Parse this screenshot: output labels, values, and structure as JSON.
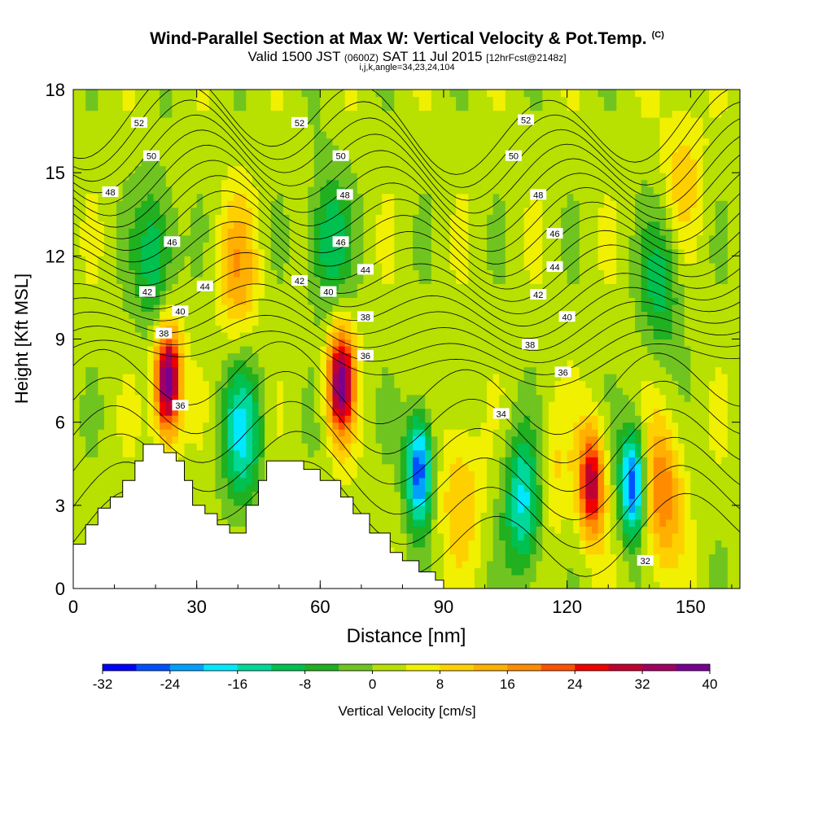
{
  "header": {
    "title": "Wind-Parallel Section at Max W: Vertical Velocity & Pot.Temp.",
    "copyright": "(C)",
    "subtitle_main": "Valid 1500 JST",
    "subtitle_utc": "(0600Z)",
    "subtitle_date": "SAT 11 Jul 2015",
    "subtitle_fcst": "[12hrFcst@2148z]",
    "subtitle2": "i,j,k,angle=34,23,24,104"
  },
  "colors": {
    "terrain": "#ffffff",
    "contour_line": "#000000",
    "background": "#ffffff"
  },
  "chart_data": {
    "type": "heatmap",
    "xlabel": "Distance [nm]",
    "ylabel": "Height [Kft MSL]",
    "xlim": [
      0,
      162
    ],
    "ylim": [
      0,
      18
    ],
    "xticks": [
      0,
      30,
      60,
      90,
      120,
      150
    ],
    "yticks": [
      0,
      3,
      6,
      9,
      12,
      15,
      18
    ],
    "grid": false,
    "colorbar": {
      "label": "Vertical Velocity [cm/s]",
      "placement": "bottom",
      "ticks": [
        "-32",
        "-24",
        "-16",
        "-8",
        "0",
        "8",
        "16",
        "24",
        "32",
        "40"
      ],
      "levels": [
        -32,
        -28,
        -24,
        -20,
        -16,
        -12,
        -8,
        -4,
        0,
        4,
        8,
        12,
        16,
        20,
        24,
        28,
        32,
        36,
        40
      ],
      "colors": [
        "#0000ff",
        "#0050ff",
        "#00a0ff",
        "#00e8ff",
        "#00d89a",
        "#00c050",
        "#20b020",
        "#70c420",
        "#b8e000",
        "#f0f000",
        "#ffd000",
        "#ffb000",
        "#ff8c00",
        "#ff5000",
        "#f00000",
        "#c00030",
        "#a00060",
        "#780090"
      ]
    },
    "contour_labels": [
      {
        "text": "52",
        "x": 16,
        "y": 16.8
      },
      {
        "text": "52",
        "x": 55,
        "y": 16.8
      },
      {
        "text": "52",
        "x": 110,
        "y": 16.9
      },
      {
        "text": "50",
        "x": 19,
        "y": 15.6
      },
      {
        "text": "50",
        "x": 65,
        "y": 15.6
      },
      {
        "text": "50",
        "x": 107,
        "y": 15.6
      },
      {
        "text": "48",
        "x": 9,
        "y": 14.3
      },
      {
        "text": "48",
        "x": 66,
        "y": 14.2
      },
      {
        "text": "48",
        "x": 113,
        "y": 14.2
      },
      {
        "text": "46",
        "x": 24,
        "y": 12.5
      },
      {
        "text": "46",
        "x": 65,
        "y": 12.5
      },
      {
        "text": "46",
        "x": 117,
        "y": 12.8
      },
      {
        "text": "44",
        "x": 32,
        "y": 10.9
      },
      {
        "text": "44",
        "x": 71,
        "y": 11.5
      },
      {
        "text": "44",
        "x": 117,
        "y": 11.6
      },
      {
        "text": "42",
        "x": 18,
        "y": 10.7
      },
      {
        "text": "42",
        "x": 55,
        "y": 11.1
      },
      {
        "text": "42",
        "x": 113,
        "y": 10.6
      },
      {
        "text": "40",
        "x": 26,
        "y": 10.0
      },
      {
        "text": "40",
        "x": 62,
        "y": 10.7
      },
      {
        "text": "40",
        "x": 120,
        "y": 9.8
      },
      {
        "text": "38",
        "x": 22,
        "y": 9.2
      },
      {
        "text": "38",
        "x": 71,
        "y": 9.8
      },
      {
        "text": "38",
        "x": 111,
        "y": 8.8
      },
      {
        "text": "36",
        "x": 26,
        "y": 6.6
      },
      {
        "text": "36",
        "x": 71,
        "y": 8.4
      },
      {
        "text": "36",
        "x": 119,
        "y": 7.8
      },
      {
        "text": "34",
        "x": 104,
        "y": 6.3
      },
      {
        "text": "32",
        "x": 139,
        "y": 1.0
      }
    ],
    "w_features": [
      {
        "x": 23,
        "z": 7.5,
        "w": 40
      },
      {
        "x": 65,
        "z": 7.5,
        "w": 36
      },
      {
        "x": 84,
        "z": 4.3,
        "w": -30
      },
      {
        "x": 110,
        "z": 3.2,
        "w": -22
      },
      {
        "x": 126,
        "z": 3.8,
        "w": 30
      },
      {
        "x": 136,
        "z": 3.8,
        "w": -30
      },
      {
        "x": 143,
        "z": 3.5,
        "w": 18
      },
      {
        "x": 41,
        "z": 5.6,
        "w": -18
      },
      {
        "x": 94,
        "z": 3.5,
        "w": 10
      },
      {
        "x": 115,
        "z": 4.0,
        "w": 10
      },
      {
        "x": 20,
        "z": 12.0,
        "w": -14
      },
      {
        "x": 62,
        "z": 12.5,
        "w": -14
      },
      {
        "x": 143,
        "z": 11.0,
        "w": -12
      },
      {
        "x": 40,
        "z": 11.5,
        "w": 12
      },
      {
        "x": 148,
        "z": 15.0,
        "w": 8
      }
    ],
    "terrain": [
      [
        0,
        1.6
      ],
      [
        3,
        1.6
      ],
      [
        3,
        2.3
      ],
      [
        6,
        2.3
      ],
      [
        6,
        2.9
      ],
      [
        9,
        2.9
      ],
      [
        9,
        3.3
      ],
      [
        12,
        3.3
      ],
      [
        12,
        3.9
      ],
      [
        15,
        3.9
      ],
      [
        15,
        4.6
      ],
      [
        17,
        4.6
      ],
      [
        17,
        5.2
      ],
      [
        22,
        5.2
      ],
      [
        22,
        4.9
      ],
      [
        25,
        4.9
      ],
      [
        25,
        4.6
      ],
      [
        27,
        4.6
      ],
      [
        27,
        3.9
      ],
      [
        29,
        3.9
      ],
      [
        29,
        3.0
      ],
      [
        32,
        3.0
      ],
      [
        32,
        2.7
      ],
      [
        35,
        2.7
      ],
      [
        35,
        2.3
      ],
      [
        38,
        2.3
      ],
      [
        38,
        2.0
      ],
      [
        42,
        2.0
      ],
      [
        42,
        3.0
      ],
      [
        45,
        3.0
      ],
      [
        45,
        3.9
      ],
      [
        47,
        3.9
      ],
      [
        47,
        4.6
      ],
      [
        56,
        4.6
      ],
      [
        56,
        4.3
      ],
      [
        60,
        4.3
      ],
      [
        60,
        3.9
      ],
      [
        65,
        3.9
      ],
      [
        65,
        3.3
      ],
      [
        68,
        3.3
      ],
      [
        68,
        2.7
      ],
      [
        72,
        2.7
      ],
      [
        72,
        2.0
      ],
      [
        77,
        2.0
      ],
      [
        77,
        1.3
      ],
      [
        80,
        1.3
      ],
      [
        80,
        1.0
      ],
      [
        84,
        1.0
      ],
      [
        84,
        0.6
      ],
      [
        88,
        0.6
      ],
      [
        88,
        0.3
      ],
      [
        90,
        0.3
      ],
      [
        90,
        0
      ]
    ]
  }
}
